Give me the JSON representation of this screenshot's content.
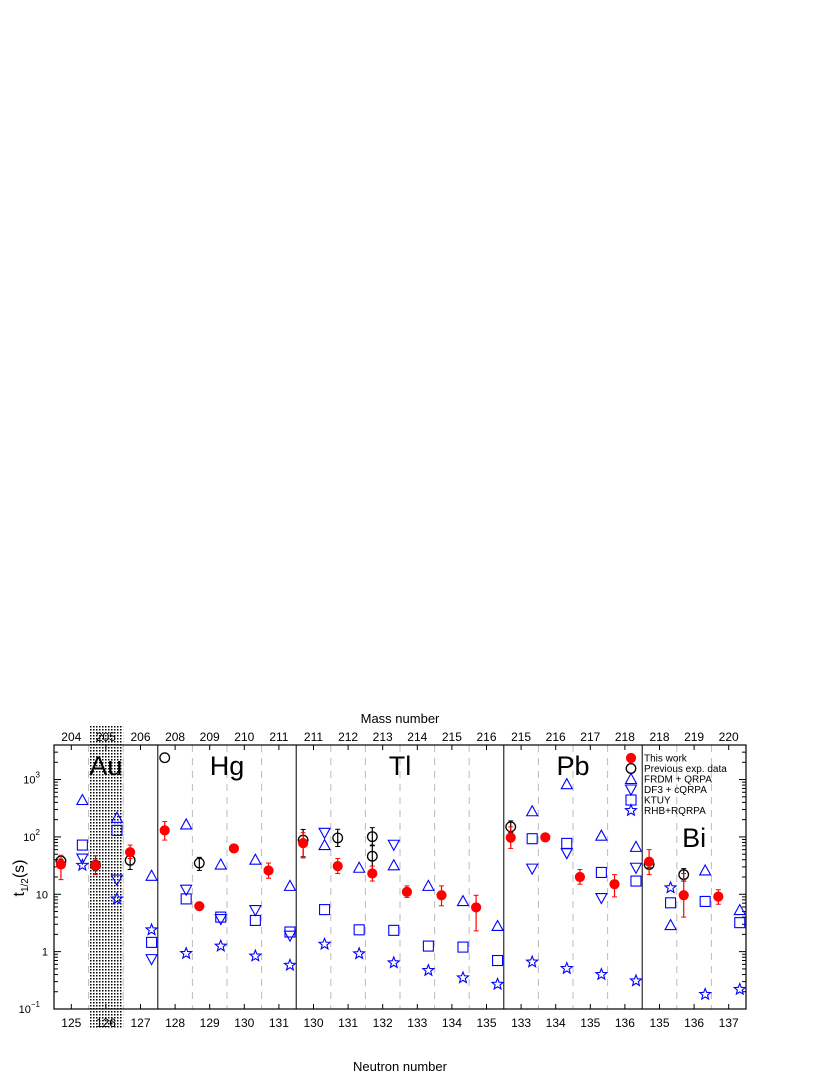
{
  "chart_data": {
    "type": "scatter",
    "title": "",
    "xlabel": "Neutron number",
    "ylabel": "t1/2(s)",
    "ylabel_main": "t",
    "ylabel_sub": "1/2",
    "ylabel_suffix": "(s)",
    "top_axis_label": "Mass number",
    "y_scale": "log",
    "ylim": [
      0.1,
      4000
    ],
    "y_ticks": [
      {
        "base": "10",
        "exp": "−1",
        "value": 0.1
      },
      {
        "base": "1",
        "exp": "",
        "value": 1
      },
      {
        "base": "10",
        "exp": "",
        "value": 10
      },
      {
        "base": "10",
        "exp": "2",
        "value": 100
      },
      {
        "base": "10",
        "exp": "3",
        "value": 1000
      }
    ],
    "columns": [
      {
        "n": "125",
        "a": "204"
      },
      {
        "n": "126",
        "a": "205"
      },
      {
        "n": "127",
        "a": "206"
      },
      {
        "n": "128",
        "a": "208"
      },
      {
        "n": "129",
        "a": "209"
      },
      {
        "n": "130",
        "a": "210"
      },
      {
        "n": "131",
        "a": "211"
      },
      {
        "n": "130",
        "a": "211"
      },
      {
        "n": "131",
        "a": "212"
      },
      {
        "n": "132",
        "a": "213"
      },
      {
        "n": "133",
        "a": "214"
      },
      {
        "n": "134",
        "a": "215"
      },
      {
        "n": "135",
        "a": "216"
      },
      {
        "n": "133",
        "a": "215"
      },
      {
        "n": "134",
        "a": "216"
      },
      {
        "n": "135",
        "a": "217"
      },
      {
        "n": "136",
        "a": "218"
      },
      {
        "n": "135",
        "a": "218"
      },
      {
        "n": "136",
        "a": "219"
      },
      {
        "n": "137",
        "a": "220"
      }
    ],
    "elements": [
      {
        "symbol": "Au",
        "columns": [
          0,
          2
        ]
      },
      {
        "symbol": "Hg",
        "columns": [
          3,
          6
        ]
      },
      {
        "symbol": "Tl",
        "columns": [
          7,
          12
        ]
      },
      {
        "symbol": "Pb",
        "columns": [
          13,
          16
        ]
      },
      {
        "symbol": "Bi",
        "columns": [
          17,
          19
        ]
      }
    ],
    "shaded_column": 1,
    "legend_position": "top-right",
    "series": [
      {
        "name": "This work",
        "marker": "filled-circle",
        "color": "#ff0000",
        "points": [
          {
            "col": 0,
            "y": 33,
            "lo": 18,
            "hi": 48
          },
          {
            "col": 1,
            "y": 32,
            "lo": 22,
            "hi": 47
          },
          {
            "col": 2,
            "y": 54,
            "lo": 42,
            "hi": 72
          },
          {
            "col": 3,
            "y": 130,
            "lo": 88,
            "hi": 185
          },
          {
            "col": 4,
            "y": 6.2,
            "lo": 5.4,
            "hi": 7.1
          },
          {
            "col": 5,
            "y": 63,
            "lo": 54,
            "hi": 74
          },
          {
            "col": 6,
            "y": 26,
            "lo": 19,
            "hi": 35
          },
          {
            "col": 7,
            "y": 78,
            "lo": 43,
            "hi": 118
          },
          {
            "col": 8,
            "y": 31,
            "lo": 23,
            "hi": 42
          },
          {
            "col": 9,
            "y": 23,
            "lo": 17,
            "hi": 31
          },
          {
            "col": 10,
            "y": 11,
            "lo": 8.8,
            "hi": 14
          },
          {
            "col": 11,
            "y": 9.6,
            "lo": 6.3,
            "hi": 14
          },
          {
            "col": 12,
            "y": 5.9,
            "lo": 2.3,
            "hi": 9.6
          },
          {
            "col": 13,
            "y": 97,
            "lo": 63,
            "hi": 150
          },
          {
            "col": 14,
            "y": 98,
            "lo": 92,
            "hi": 105
          },
          {
            "col": 15,
            "y": 20,
            "lo": 15,
            "hi": 27
          },
          {
            "col": 16,
            "y": 15,
            "lo": 9,
            "hi": 22
          },
          {
            "col": 17,
            "y": 37,
            "lo": 22,
            "hi": 60
          },
          {
            "col": 18,
            "y": 9.6,
            "lo": 4,
            "hi": 23
          },
          {
            "col": 19,
            "y": 9.1,
            "lo": 6.7,
            "hi": 12
          }
        ]
      },
      {
        "name": "Previous exp. data",
        "marker": "open-circle",
        "color": "#000000",
        "points": [
          {
            "col": 0,
            "y": 38,
            "lo": 35,
            "hi": 41
          },
          {
            "col": 1,
            "y": 32,
            "lo": 28,
            "hi": 36
          },
          {
            "col": 2,
            "y": 39,
            "lo": 27,
            "hi": 52
          },
          {
            "col": 3,
            "y": 2400
          },
          {
            "col": 4,
            "y": 35,
            "lo": 26,
            "hi": 44
          },
          {
            "col": 7,
            "y": 88,
            "lo": 45,
            "hi": 135
          },
          {
            "col": 8,
            "y": 96,
            "lo": 68,
            "hi": 136
          },
          {
            "col": 9,
            "y": 46,
            "lo": 20,
            "hi": 72
          },
          {
            "col": 9,
            "y": 101,
            "lo": 70,
            "hi": 145
          },
          {
            "col": 13,
            "y": 150,
            "lo": 120,
            "hi": 190
          },
          {
            "col": 17,
            "y": 33,
            "lo": 29,
            "hi": 36
          },
          {
            "col": 18,
            "y": 22,
            "lo": 17,
            "hi": 28
          }
        ]
      },
      {
        "name": "FRDM + QRPA",
        "marker": "triangle-up",
        "color": "#0000ff",
        "points": [
          {
            "col": 0,
            "y": 440
          },
          {
            "col": 1,
            "y": 215
          },
          {
            "col": 2,
            "y": 21
          },
          {
            "col": 3,
            "y": 165
          },
          {
            "col": 4,
            "y": 33
          },
          {
            "col": 5,
            "y": 40
          },
          {
            "col": 6,
            "y": 14
          },
          {
            "col": 7,
            "y": 72
          },
          {
            "col": 8,
            "y": 29
          },
          {
            "col": 9,
            "y": 32
          },
          {
            "col": 10,
            "y": 14
          },
          {
            "col": 11,
            "y": 7.6
          },
          {
            "col": 12,
            "y": 2.8
          },
          {
            "col": 13,
            "y": 280
          },
          {
            "col": 14,
            "y": 830
          },
          {
            "col": 15,
            "y": 105
          },
          {
            "col": 16,
            "y": 67
          },
          {
            "col": 17,
            "y": 2.9
          },
          {
            "col": 18,
            "y": 26
          },
          {
            "col": 19,
            "y": 5.3
          }
        ]
      },
      {
        "name": "DF3 + cQRPA",
        "marker": "triangle-down",
        "color": "#0000ff",
        "points": [
          {
            "col": 0,
            "y": 42
          },
          {
            "col": 1,
            "y": 18
          },
          {
            "col": 2,
            "y": 0.74
          },
          {
            "col": 3,
            "y": 12
          },
          {
            "col": 4,
            "y": 3.7
          },
          {
            "col": 5,
            "y": 5.3
          },
          {
            "col": 6,
            "y": 1.9
          },
          {
            "col": 7,
            "y": 118
          },
          {
            "col": 9,
            "y": 73
          },
          {
            "col": 13,
            "y": 28
          },
          {
            "col": 14,
            "y": 52
          },
          {
            "col": 15,
            "y": 8.6
          },
          {
            "col": 16,
            "y": 29
          }
        ]
      },
      {
        "name": "KTUY",
        "marker": "square",
        "color": "#0000ff",
        "points": [
          {
            "col": 0,
            "y": 72
          },
          {
            "col": 1,
            "y": 130
          },
          {
            "col": 2,
            "y": 1.45
          },
          {
            "col": 3,
            "y": 8.3
          },
          {
            "col": 4,
            "y": 4
          },
          {
            "col": 5,
            "y": 3.5
          },
          {
            "col": 6,
            "y": 2.2
          },
          {
            "col": 7,
            "y": 5.4
          },
          {
            "col": 8,
            "y": 2.4
          },
          {
            "col": 9,
            "y": 2.35
          },
          {
            "col": 10,
            "y": 1.25
          },
          {
            "col": 11,
            "y": 1.2
          },
          {
            "col": 12,
            "y": 0.7
          },
          {
            "col": 13,
            "y": 93
          },
          {
            "col": 14,
            "y": 77
          },
          {
            "col": 15,
            "y": 24
          },
          {
            "col": 16,
            "y": 17
          },
          {
            "col": 17,
            "y": 7.1
          },
          {
            "col": 18,
            "y": 7.5
          },
          {
            "col": 19,
            "y": 3.2
          }
        ]
      },
      {
        "name": "RHB+RQRPA",
        "marker": "star",
        "color": "#0000ff",
        "points": [
          {
            "col": 0,
            "y": 32
          },
          {
            "col": 1,
            "y": 8.3
          },
          {
            "col": 2,
            "y": 2.4
          },
          {
            "col": 3,
            "y": 0.93
          },
          {
            "col": 4,
            "y": 1.25
          },
          {
            "col": 5,
            "y": 0.84
          },
          {
            "col": 6,
            "y": 0.58
          },
          {
            "col": 7,
            "y": 1.35
          },
          {
            "col": 8,
            "y": 0.92
          },
          {
            "col": 9,
            "y": 0.64
          },
          {
            "col": 10,
            "y": 0.47
          },
          {
            "col": 11,
            "y": 0.35
          },
          {
            "col": 12,
            "y": 0.27
          },
          {
            "col": 13,
            "y": 0.66
          },
          {
            "col": 14,
            "y": 0.51
          },
          {
            "col": 15,
            "y": 0.4
          },
          {
            "col": 16,
            "y": 0.31
          },
          {
            "col": 17,
            "y": 13
          },
          {
            "col": 18,
            "y": 0.18
          },
          {
            "col": 19,
            "y": 0.22
          }
        ]
      }
    ]
  }
}
